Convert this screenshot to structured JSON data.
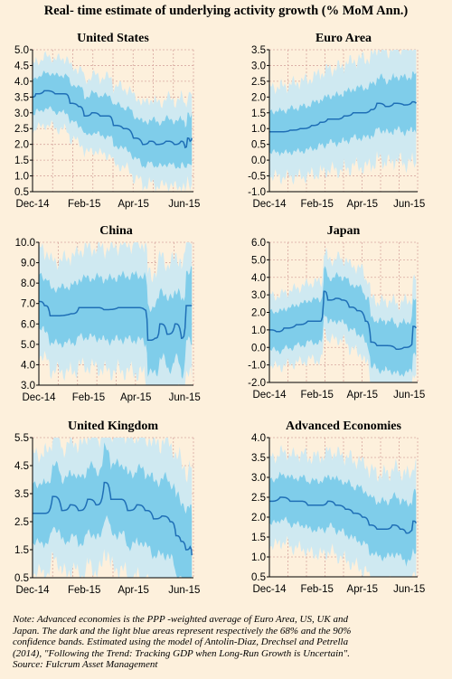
{
  "title": "Real- time estimate of underlying activity growth (% MoM Ann.)",
  "note": {
    "line1": "Note: Advanced economies is the PPP -weighted average of Euro Area, US, UK and",
    "line2": "Japan. The dark and the light blue areas represent respectively the 68% and the 90%",
    "line3": "confidence bands. Estimated using the model of Antolin-Diaz, Drechsel and Petrella",
    "line4": "(2014), \"Following the Trend: Tracking GDP when Long-Run Growth is Uncertain\".",
    "line5": "Source: Fulcrum Asset Management"
  },
  "colors": {
    "background": "#fdf0dc",
    "line": "#1f6fb6",
    "band68": "#7fcdea",
    "band90": "#cfe9f1",
    "grid": "#d8a8a0"
  },
  "chart_data": [
    {
      "type": "area",
      "title": "United States",
      "x_ticks": [
        "Dec-14",
        "Feb-15",
        "Apr-15",
        "Jun-15"
      ],
      "x_start": "2014-12-01",
      "x_end": "2015-06-12",
      "ylim": [
        0.5,
        5.0
      ],
      "y_ticks": [
        "0.5",
        "1.0",
        "1.5",
        "2.0",
        "2.5",
        "3.0",
        "3.5",
        "4.0",
        "4.5",
        "5.0"
      ],
      "grid": true,
      "series": [
        {
          "values": [
            [
              "2014-12-01",
              3.5
            ],
            [
              "2014-12-05",
              3.6
            ],
            [
              "2014-12-15",
              3.7
            ],
            [
              "2014-12-28",
              3.6
            ],
            [
              "2015-01-08",
              3.6
            ],
            [
              "2015-01-15",
              3.3
            ],
            [
              "2015-01-25",
              3.2
            ],
            [
              "2015-02-01",
              2.9
            ],
            [
              "2015-02-10",
              3.0
            ],
            [
              "2015-02-20",
              2.9
            ],
            [
              "2015-03-01",
              2.9
            ],
            [
              "2015-03-08",
              2.6
            ],
            [
              "2015-03-20",
              2.5
            ],
            [
              "2015-04-01",
              2.2
            ],
            [
              "2015-04-12",
              2.0
            ],
            [
              "2015-04-20",
              2.1
            ],
            [
              "2015-04-28",
              2.0
            ],
            [
              "2015-05-10",
              2.1
            ],
            [
              "2015-05-20",
              2.0
            ],
            [
              "2015-05-28",
              2.1
            ],
            [
              "2015-06-02",
              1.9
            ],
            [
              "2015-06-05",
              2.2
            ],
            [
              "2015-06-08",
              2.1
            ],
            [
              "2015-06-10",
              2.2
            ]
          ]
        }
      ],
      "band68_halfwidth": 0.55,
      "band90_halfwidth": 1.05
    },
    {
      "type": "area",
      "title": "Euro Area",
      "x_ticks": [
        "Dec-14",
        "Feb-15",
        "Apr-15",
        "Jun-15"
      ],
      "x_start": "2014-12-01",
      "x_end": "2015-06-12",
      "ylim": [
        -1.0,
        3.5
      ],
      "y_ticks": [
        "-1.0",
        "-0.5",
        "0.0",
        "0.5",
        "1.0",
        "1.5",
        "2.0",
        "2.5",
        "3.0",
        "3.5"
      ],
      "grid": true,
      "series": [
        {
          "values": [
            [
              "2014-12-01",
              0.9
            ],
            [
              "2014-12-15",
              0.9
            ],
            [
              "2014-12-28",
              0.95
            ],
            [
              "2015-01-10",
              1.0
            ],
            [
              "2015-01-25",
              1.1
            ],
            [
              "2015-02-05",
              1.2
            ],
            [
              "2015-02-15",
              1.3
            ],
            [
              "2015-02-25",
              1.3
            ],
            [
              "2015-03-08",
              1.4
            ],
            [
              "2015-03-20",
              1.5
            ],
            [
              "2015-04-01",
              1.5
            ],
            [
              "2015-04-12",
              1.6
            ],
            [
              "2015-04-20",
              1.8
            ],
            [
              "2015-05-01",
              1.7
            ],
            [
              "2015-05-12",
              1.8
            ],
            [
              "2015-05-25",
              1.75
            ],
            [
              "2015-06-05",
              1.85
            ],
            [
              "2015-06-10",
              1.8
            ]
          ]
        }
      ],
      "band68_halfwidth": 0.65,
      "band90_halfwidth": 1.4
    },
    {
      "type": "area",
      "title": "China",
      "x_ticks": [
        "Dec-14",
        "Feb-15",
        "Apr-15",
        "Jun-15"
      ],
      "x_start": "2014-12-01",
      "x_end": "2015-06-12",
      "ylim": [
        3.0,
        10.0
      ],
      "y_ticks": [
        "3.0",
        "4.0",
        "5.0",
        "6.0",
        "7.0",
        "8.0",
        "9.0",
        "10.0"
      ],
      "grid": true,
      "series": [
        {
          "values": [
            [
              "2014-12-01",
              7.1
            ],
            [
              "2014-12-08",
              6.9
            ],
            [
              "2014-12-15",
              6.4
            ],
            [
              "2015-01-10",
              6.5
            ],
            [
              "2015-01-20",
              6.8
            ],
            [
              "2015-02-10",
              6.8
            ],
            [
              "2015-02-20",
              6.7
            ],
            [
              "2015-03-10",
              6.8
            ],
            [
              "2015-04-01",
              6.8
            ],
            [
              "2015-04-12",
              6.7
            ],
            [
              "2015-04-16",
              5.2
            ],
            [
              "2015-04-25",
              5.3
            ],
            [
              "2015-05-01",
              6.0
            ],
            [
              "2015-05-10",
              5.5
            ],
            [
              "2015-05-20",
              6.0
            ],
            [
              "2015-05-28",
              5.3
            ],
            [
              "2015-06-03",
              6.9
            ],
            [
              "2015-06-10",
              6.9
            ]
          ]
        }
      ],
      "band68_halfwidth": 1.3,
      "band90_halfwidth": 2.6
    },
    {
      "type": "area",
      "title": "Japan",
      "x_ticks": [
        "Dec-14",
        "Feb-15",
        "Apr-15",
        "Jun-15"
      ],
      "x_start": "2014-12-01",
      "x_end": "2015-06-12",
      "ylim": [
        -2.0,
        6.0
      ],
      "y_ticks": [
        "-2.0",
        "-1.0",
        "0.0",
        "1.0",
        "2.0",
        "3.0",
        "4.0",
        "5.0",
        "6.0"
      ],
      "grid": true,
      "series": [
        {
          "values": [
            [
              "2014-12-01",
              1.0
            ],
            [
              "2014-12-10",
              0.9
            ],
            [
              "2014-12-20",
              1.1
            ],
            [
              "2015-01-05",
              1.3
            ],
            [
              "2015-01-20",
              1.5
            ],
            [
              "2015-02-05",
              1.5
            ],
            [
              "2015-02-10",
              3.2
            ],
            [
              "2015-02-15",
              2.7
            ],
            [
              "2015-02-25",
              2.8
            ],
            [
              "2015-03-05",
              2.7
            ],
            [
              "2015-03-15",
              2.3
            ],
            [
              "2015-03-25",
              2.1
            ],
            [
              "2015-04-05",
              1.5
            ],
            [
              "2015-04-12",
              0.3
            ],
            [
              "2015-04-20",
              0.1
            ],
            [
              "2015-05-01",
              0.1
            ],
            [
              "2015-05-15",
              -0.1
            ],
            [
              "2015-05-25",
              0.0
            ],
            [
              "2015-06-03",
              0.1
            ],
            [
              "2015-06-06",
              1.2
            ],
            [
              "2015-06-10",
              1.1
            ]
          ]
        }
      ],
      "band68_halfwidth": 1.1,
      "band90_halfwidth": 2.0
    },
    {
      "type": "area",
      "title": "United Kingdom",
      "x_ticks": [
        "Dec-14",
        "Feb-15",
        "Apr-15",
        "Jun-15"
      ],
      "x_start": "2014-12-01",
      "x_end": "2015-06-12",
      "ylim": [
        0.5,
        5.5
      ],
      "y_ticks": [
        "0.5",
        "1.5",
        "2.5",
        "3.5",
        "4.5",
        "5.5"
      ],
      "grid": true,
      "series": [
        {
          "values": [
            [
              "2014-12-01",
              2.8
            ],
            [
              "2014-12-15",
              2.8
            ],
            [
              "2014-12-25",
              3.4
            ],
            [
              "2015-01-05",
              2.9
            ],
            [
              "2015-01-15",
              3.1
            ],
            [
              "2015-01-25",
              2.9
            ],
            [
              "2015-02-05",
              3.3
            ],
            [
              "2015-02-15",
              3.1
            ],
            [
              "2015-02-25",
              3.9
            ],
            [
              "2015-03-05",
              3.3
            ],
            [
              "2015-03-15",
              3.3
            ],
            [
              "2015-03-25",
              2.9
            ],
            [
              "2015-04-05",
              3.1
            ],
            [
              "2015-04-15",
              2.9
            ],
            [
              "2015-04-25",
              2.6
            ],
            [
              "2015-05-05",
              2.7
            ],
            [
              "2015-05-15",
              2.5
            ],
            [
              "2015-05-22",
              2.0
            ],
            [
              "2015-05-28",
              1.8
            ],
            [
              "2015-06-03",
              1.5
            ],
            [
              "2015-06-08",
              1.6
            ],
            [
              "2015-06-10",
              1.3
            ]
          ]
        }
      ],
      "band68_halfwidth": 1.05,
      "band90_halfwidth": 2.1
    },
    {
      "type": "area",
      "title": "Advanced Economies",
      "x_ticks": [
        "Dec-14",
        "Feb-15",
        "Apr-15",
        "Jun-15"
      ],
      "x_start": "2014-12-01",
      "x_end": "2015-06-12",
      "ylim": [
        0.5,
        4.0
      ],
      "y_ticks": [
        "0.5",
        "1.0",
        "1.5",
        "2.0",
        "2.5",
        "3.0",
        "3.5",
        "4.0"
      ],
      "grid": true,
      "series": [
        {
          "values": [
            [
              "2014-12-01",
              2.4
            ],
            [
              "2014-12-15",
              2.5
            ],
            [
              "2014-12-28",
              2.4
            ],
            [
              "2015-01-10",
              2.4
            ],
            [
              "2015-01-20",
              2.3
            ],
            [
              "2015-02-05",
              2.3
            ],
            [
              "2015-02-15",
              2.4
            ],
            [
              "2015-02-25",
              2.3
            ],
            [
              "2015-03-10",
              2.2
            ],
            [
              "2015-03-20",
              2.1
            ],
            [
              "2015-04-01",
              2.0
            ],
            [
              "2015-04-10",
              1.8
            ],
            [
              "2015-04-20",
              1.7
            ],
            [
              "2015-05-01",
              1.7
            ],
            [
              "2015-05-10",
              1.8
            ],
            [
              "2015-05-20",
              1.7
            ],
            [
              "2015-05-28",
              1.6
            ],
            [
              "2015-06-03",
              1.65
            ],
            [
              "2015-06-06",
              1.9
            ],
            [
              "2015-06-10",
              1.85
            ]
          ]
        }
      ],
      "band68_halfwidth": 0.55,
      "band90_halfwidth": 1.1
    }
  ]
}
